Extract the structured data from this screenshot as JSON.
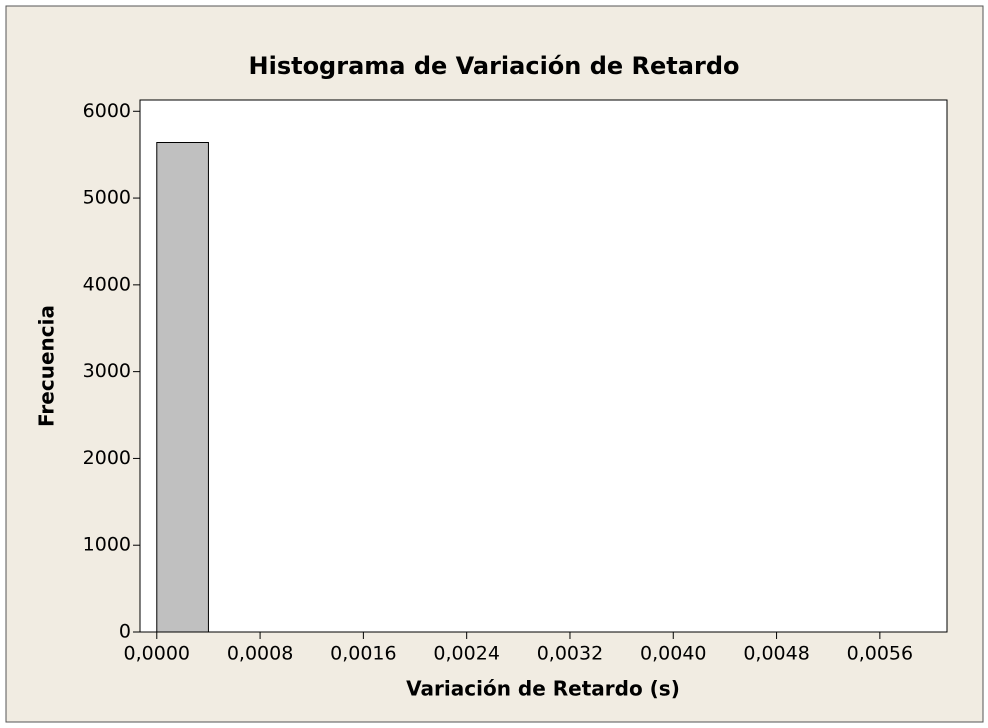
{
  "chart_data": {
    "type": "histogram",
    "title": "Histograma de Variación de Retardo",
    "xlabel": "Variación de Retardo (s)",
    "ylabel": "Frecuencia",
    "bins": [
      0,
      0.0004,
      0.0008,
      0.0012,
      0.0016,
      0.002,
      0.0024,
      0.0028,
      0.0032,
      0.0036,
      0.004,
      0.0044,
      0.0048,
      0.0052,
      0.0056,
      0.006
    ],
    "values": [
      5640,
      0,
      0,
      0,
      0,
      0,
      0,
      0,
      0,
      0,
      0,
      0,
      0,
      0,
      0
    ],
    "color": "#c0c0c0",
    "xlim": [
      -0.00013,
      0.00612
    ],
    "ylim": [
      0,
      6130
    ],
    "xticks": [
      {
        "value": 0,
        "label": "0,0000"
      },
      {
        "value": 0.0008,
        "label": "0,0008"
      },
      {
        "value": 0.0016,
        "label": "0,0016"
      },
      {
        "value": 0.0024,
        "label": "0,0024"
      },
      {
        "value": 0.0032,
        "label": "0,0032"
      },
      {
        "value": 0.004,
        "label": "0,0040"
      },
      {
        "value": 0.0048,
        "label": "0,0048"
      },
      {
        "value": 0.0056,
        "label": "0,0056"
      }
    ],
    "yticks": [
      0,
      1000,
      2000,
      3000,
      4000,
      5000,
      6000
    ]
  }
}
